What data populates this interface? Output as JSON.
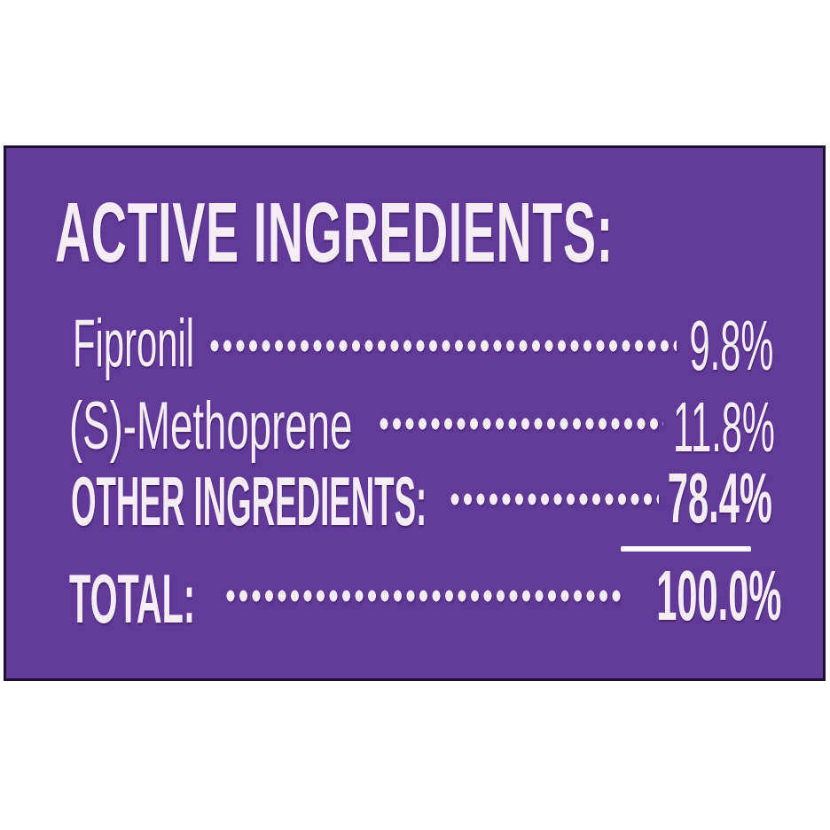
{
  "panel": {
    "title": "ACTIVE INGREDIENTS:",
    "rows": [
      {
        "label": "Fipronil",
        "value": "9.8%"
      },
      {
        "label": "(S)-Methoprene",
        "value": "11.8%"
      },
      {
        "label": "OTHER INGREDIENTS:",
        "value": "78.4%"
      },
      {
        "label": "TOTAL:",
        "value": "100.0%"
      }
    ]
  },
  "colors": {
    "page_background": "#FFFFFF",
    "panel_background": "#623A9A",
    "panel_border": "#1C1230",
    "text_color": "#F5EDF5",
    "divider_color": "#FFFFFF"
  }
}
